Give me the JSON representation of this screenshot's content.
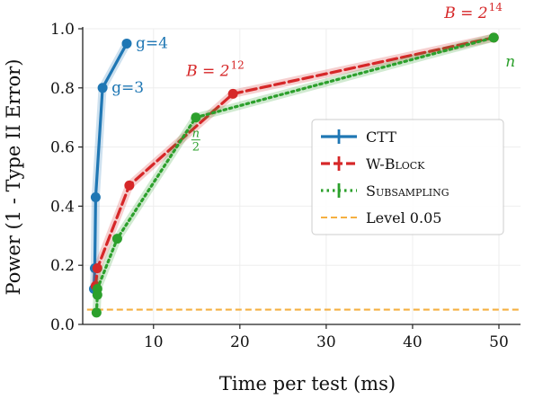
{
  "chart_data": {
    "type": "line",
    "xlabel": "Time per test (ms)",
    "ylabel": "Power (1 - Type II Error)",
    "xlim": [
      1.8,
      52.5
    ],
    "ylim": [
      0.0,
      1.0
    ],
    "x_ticks": [
      10,
      20,
      30,
      40,
      50
    ],
    "y_ticks": [
      0.0,
      0.2,
      0.4,
      0.6,
      0.8,
      1.0
    ],
    "grid": true,
    "legend_position": "center-right",
    "series": [
      {
        "name": "CTT",
        "color": "#1f77b4",
        "style": "solid",
        "x": [
          3.1,
          3.2,
          3.3,
          4.1,
          6.9
        ],
        "y": [
          0.12,
          0.19,
          0.43,
          0.8,
          0.95
        ]
      },
      {
        "name": "W-Block",
        "color": "#d62728",
        "style": "dashed",
        "x": [
          3.3,
          3.5,
          7.2,
          19.2,
          49.4
        ],
        "y": [
          0.13,
          0.19,
          0.47,
          0.78,
          0.97
        ]
      },
      {
        "name": "Subsampling",
        "color": "#2ca02c",
        "style": "dotted",
        "x": [
          3.4,
          3.5,
          3.5,
          5.8,
          14.9,
          49.4
        ],
        "y": [
          0.04,
          0.1,
          0.12,
          0.29,
          0.7,
          0.97
        ]
      }
    ],
    "reference_line": {
      "name": "Level 0.05",
      "y": 0.05,
      "color": "#f5b041",
      "style": "dashed"
    },
    "annotations": [
      {
        "text": "g=4",
        "color": "#1f77b4",
        "x": 6.9,
        "y": 0.95
      },
      {
        "text": "g=3",
        "color": "#1f77b4",
        "x": 4.1,
        "y": 0.8
      },
      {
        "text_main": "B = 2",
        "text_sup": "12",
        "color": "#d62728",
        "x": 19.2,
        "y": 0.78
      },
      {
        "text_main": "B = 2",
        "text_sup": "14",
        "color": "#d62728",
        "x": 49.4,
        "y": 0.97
      },
      {
        "text": "n",
        "color": "#2ca02c",
        "x": 49.4,
        "y": 0.97
      },
      {
        "frac_num": "n",
        "frac_den": "2",
        "color": "#2ca02c",
        "x": 14.9,
        "y": 0.7
      }
    ]
  }
}
